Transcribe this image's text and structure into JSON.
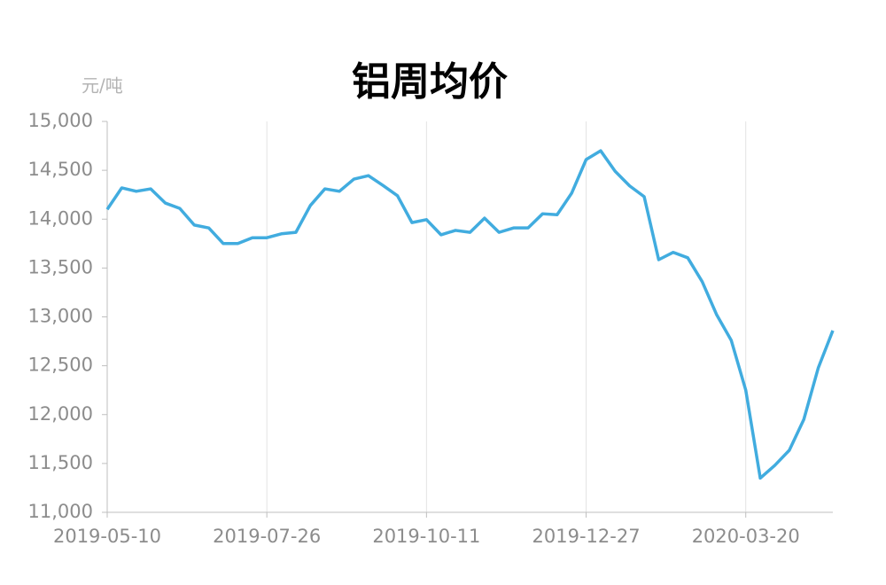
{
  "chart_data": {
    "type": "line",
    "title": "铝周均价",
    "y_axis_label": "元/吨",
    "categories": [
      "2019-05-10",
      null,
      null,
      null,
      null,
      null,
      null,
      null,
      null,
      null,
      null,
      "2019-07-26",
      null,
      null,
      null,
      null,
      null,
      null,
      null,
      null,
      null,
      null,
      "2019-10-11",
      null,
      null,
      null,
      null,
      null,
      null,
      null,
      null,
      null,
      null,
      "2019-12-27",
      null,
      null,
      null,
      null,
      null,
      null,
      null,
      null,
      null,
      null,
      "2020-03-20",
      null,
      null,
      null,
      null,
      null,
      null
    ],
    "series": [
      {
        "name": "铝周均价",
        "color": "#41acdf",
        "values": [
          14100,
          14320,
          14285,
          14310,
          14165,
          14110,
          13940,
          13910,
          13750,
          13750,
          13810,
          13810,
          13850,
          13865,
          14140,
          14310,
          14285,
          14410,
          14445,
          14345,
          14240,
          13965,
          13995,
          13840,
          13885,
          13865,
          14010,
          13865,
          13910,
          13910,
          14055,
          14045,
          14265,
          14610,
          14700,
          14490,
          14340,
          14230,
          13585,
          13660,
          13605,
          13360,
          13020,
          12760,
          12250,
          11350,
          11480,
          11635,
          11950,
          12480,
          12860
        ]
      }
    ],
    "ylim": [
      11000,
      15000
    ],
    "yticks": [
      {
        "value": 11000,
        "label": "11,000"
      },
      {
        "value": 11500,
        "label": "11,500"
      },
      {
        "value": 12000,
        "label": "12,000"
      },
      {
        "value": 12500,
        "label": "12,500"
      },
      {
        "value": 13000,
        "label": "13,000"
      },
      {
        "value": 13500,
        "label": "13,500"
      },
      {
        "value": 14000,
        "label": "14,000"
      },
      {
        "value": 14500,
        "label": "14,500"
      },
      {
        "value": 15000,
        "label": "15,000"
      }
    ],
    "grid": "x"
  }
}
